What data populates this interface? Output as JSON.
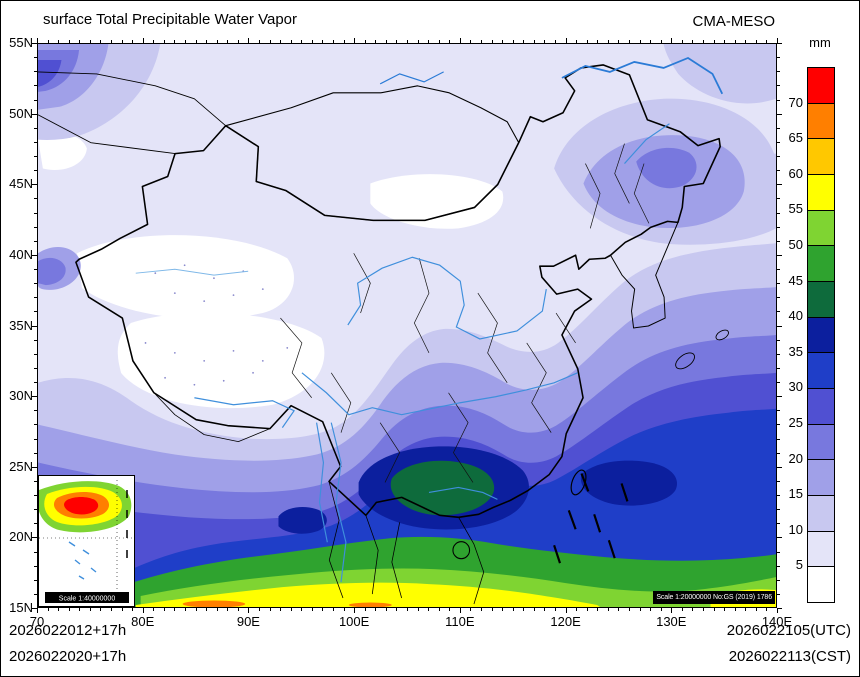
{
  "header": {
    "title": "surface Total Precipitable Water Vapor",
    "model": "CMA-MESO"
  },
  "colorbar": {
    "unit": "mm",
    "tick_labels": [
      "70",
      "65",
      "60",
      "55",
      "50",
      "45",
      "40",
      "35",
      "30",
      "25",
      "20",
      "15",
      "10",
      "5"
    ],
    "colors_top_to_bottom": [
      "#ff0000",
      "#ff7f00",
      "#ffc800",
      "#ffff00",
      "#7fd432",
      "#2fa32f",
      "#0e6b3c",
      "#0c1f9e",
      "#1f3ec8",
      "#5050d2",
      "#7878de",
      "#a0a0e8",
      "#c8c8f0",
      "#e4e4f8",
      "#ffffff"
    ]
  },
  "axes": {
    "lat_labels": [
      "55N",
      "50N",
      "45N",
      "40N",
      "35N",
      "30N",
      "25N",
      "20N",
      "15N"
    ],
    "lon_labels": [
      "70",
      "80E",
      "90E",
      "100E",
      "110E",
      "120E",
      "130E",
      "140E"
    ]
  },
  "footer": {
    "left_line1": "2026022012+17h",
    "left_line2": "2026022020+17h",
    "right_line1": "2026022105(UTC)",
    "right_line2": "2026022113(CST)"
  },
  "badges": {
    "main_scale": "Scale 1:20000000 No:GS (2019) 1786",
    "inset_scale": "Scale 1:40000000"
  },
  "map": {
    "palette": {
      "0": "#ffffff",
      "5": "#e4e4f8",
      "10": "#c8c8f0",
      "15": "#a0a0e8",
      "20": "#7878de",
      "25": "#5050d2",
      "30": "#1f3ec8",
      "35": "#0c1f9e",
      "40": "#0e6b3c",
      "45": "#2fa32f",
      "50": "#7fd432",
      "55": "#ffff00",
      "60": "#ffc800",
      "65": "#ff7f00",
      "70": "#ff0000"
    }
  },
  "chart_data": {
    "type": "heatmap",
    "title": "surface Total Precipitable Water Vapor",
    "units": "mm",
    "lon_range_e": [
      70,
      140
    ],
    "lat_range_n": [
      15,
      55
    ],
    "contour_levels": [
      5,
      10,
      15,
      20,
      25,
      30,
      35,
      40,
      45,
      50,
      55,
      60,
      65,
      70
    ],
    "palette_low_to_high": [
      "#ffffff",
      "#e4e4f8",
      "#c8c8f0",
      "#a0a0e8",
      "#7878de",
      "#5050d2",
      "#1f3ec8",
      "#0c1f9e",
      "#0e6b3c",
      "#2fa32f",
      "#7fd432",
      "#ffff00",
      "#ffc800",
      "#ff7f00",
      "#ff0000"
    ],
    "pattern": "dry (<5 mm) over Tarim Basin, Tibetan Plateau and Gobi; 5-15 mm across northern China and the northeast; values increase southward through 20-35 mm over central/eastern China; 35-45 mm maximum core over southwest China around 100-117E, 20-26N; 45-70+ mm band along the southern edge (15-19N) and in the South China Sea inset"
  }
}
